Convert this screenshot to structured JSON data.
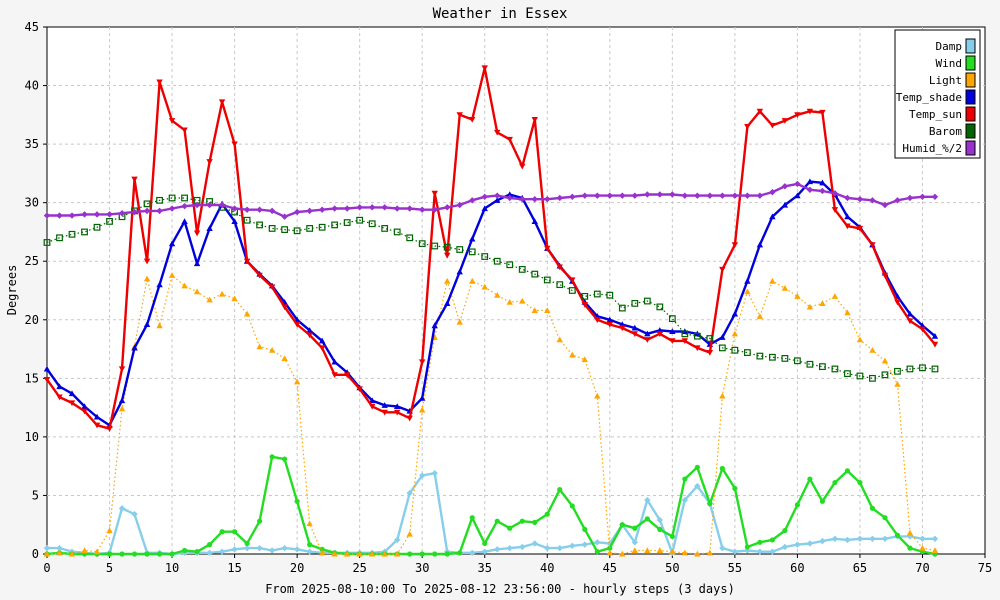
{
  "chart_data": {
    "type": "line",
    "title": "Weather in Essex",
    "xlabel": "From 2025-08-10:00 To 2025-08-12 23:56:00 - hourly steps (3 days)",
    "ylabel": "Degrees",
    "xlim": [
      0,
      75
    ],
    "ylim": [
      0,
      45
    ],
    "xticks": [
      0,
      5,
      10,
      15,
      20,
      25,
      30,
      35,
      40,
      45,
      50,
      55,
      60,
      65,
      70,
      75
    ],
    "yticks": [
      0,
      5,
      10,
      15,
      20,
      25,
      30,
      35,
      40,
      45
    ],
    "grid": true,
    "legend_position": "top-right",
    "series": [
      {
        "name": "Damp",
        "color": "#87ceeb",
        "marker": "diamond",
        "line": "solid",
        "values": [
          0.5,
          0.5,
          0.2,
          0.1,
          0.0,
          0.1,
          3.9,
          3.4,
          0.1,
          0.1,
          0.0,
          0.1,
          0.1,
          0.1,
          0.2,
          0.4,
          0.5,
          0.5,
          0.3,
          0.5,
          0.4,
          0.2,
          0.1,
          0.1,
          0.1,
          0.1,
          0.1,
          0.2,
          1.2,
          5.2,
          6.7,
          6.9,
          0.2,
          0.1,
          0.1,
          0.2,
          0.4,
          0.5,
          0.6,
          0.9,
          0.5,
          0.5,
          0.7,
          0.8,
          1.0,
          0.9,
          2.5,
          1.0,
          4.6,
          2.9,
          0.1,
          4.6,
          5.8,
          4.3,
          0.5,
          0.2,
          0.3,
          0.2,
          0.2,
          0.6,
          0.8,
          0.9,
          1.1,
          1.3,
          1.2,
          1.3,
          1.3,
          1.3,
          1.5,
          1.5,
          1.3,
          1.3
        ]
      },
      {
        "name": "Wind",
        "color": "#22dd22",
        "marker": "circle",
        "line": "solid",
        "values": [
          0.0,
          0.1,
          0.0,
          0.0,
          0.0,
          0.0,
          0.0,
          0.0,
          0.0,
          0.0,
          0.0,
          0.3,
          0.2,
          0.8,
          1.9,
          1.9,
          0.9,
          2.8,
          8.3,
          8.1,
          4.5,
          0.8,
          0.4,
          0.1,
          0.0,
          0.0,
          0.0,
          0.0,
          0.0,
          0.0,
          0.0,
          0.0,
          0.0,
          0.1,
          3.1,
          0.9,
          2.8,
          2.2,
          2.8,
          2.7,
          3.4,
          5.5,
          4.1,
          2.1,
          0.2,
          0.5,
          2.5,
          2.2,
          3.0,
          2.1,
          1.5,
          6.4,
          7.4,
          4.3,
          7.3,
          5.6,
          0.6,
          1.0,
          1.2,
          2.0,
          4.2,
          6.4,
          4.5,
          6.1,
          7.1,
          6.1,
          3.9,
          3.1,
          1.6,
          0.5,
          0.2,
          0.0
        ]
      },
      {
        "name": "Light",
        "color": "#ffa500",
        "marker": "triangle",
        "line": "dotted",
        "values": [
          0.0,
          0.1,
          0.0,
          0.3,
          0.2,
          2.0,
          12.4,
          17.7,
          23.5,
          19.5,
          23.8,
          22.9,
          22.4,
          21.7,
          22.2,
          21.8,
          20.5,
          17.7,
          17.4,
          16.7,
          14.7,
          2.6,
          0.1,
          0.0,
          0.0,
          0.0,
          0.0,
          0.0,
          0.0,
          1.7,
          12.3,
          18.5,
          23.3,
          19.8,
          23.3,
          22.8,
          22.1,
          21.5,
          21.6,
          20.8,
          20.8,
          18.3,
          17.0,
          16.6,
          13.5,
          0.1,
          0.0,
          0.3,
          0.3,
          0.3,
          0.2,
          0.1,
          0.0,
          0.1,
          13.5,
          18.8,
          22.4,
          20.3,
          23.3,
          22.7,
          22.0,
          21.1,
          21.4,
          22.0,
          20.6,
          18.3,
          17.4,
          16.5,
          14.5,
          1.8,
          0.5,
          0.3
        ]
      },
      {
        "name": "Temp_shade",
        "color": "#0000dd",
        "marker": "triangle",
        "line": "solid",
        "values": [
          15.8,
          14.3,
          13.7,
          12.6,
          11.7,
          11.0,
          13.1,
          17.6,
          19.6,
          23.0,
          26.5,
          28.4,
          24.8,
          27.8,
          29.9,
          28.4,
          25.0,
          23.9,
          22.9,
          21.5,
          20.0,
          19.1,
          18.2,
          16.4,
          15.5,
          14.2,
          13.1,
          12.7,
          12.6,
          12.2,
          13.3,
          19.5,
          21.4,
          24.1,
          26.9,
          29.5,
          30.2,
          30.7,
          30.4,
          28.4,
          26.1,
          24.6,
          23.3,
          21.5,
          20.3,
          20.0,
          19.6,
          19.3,
          18.8,
          19.1,
          19.0,
          19.0,
          18.8,
          17.9,
          18.5,
          20.5,
          23.3,
          26.4,
          28.8,
          29.8,
          30.6,
          31.8,
          31.7,
          30.7,
          28.8,
          27.9,
          26.4,
          24.0,
          22.0,
          20.5,
          19.5,
          18.6
        ]
      },
      {
        "name": "Temp_sun",
        "color": "#ee0000",
        "marker": "triangle-down",
        "line": "solid",
        "values": [
          14.9,
          13.4,
          12.9,
          12.2,
          11.0,
          10.7,
          15.8,
          32.0,
          25.0,
          40.3,
          37.0,
          36.2,
          27.4,
          33.5,
          38.6,
          35.0,
          25.0,
          23.8,
          22.8,
          21.1,
          19.6,
          18.7,
          17.6,
          15.3,
          15.3,
          14.1,
          12.6,
          12.1,
          12.1,
          11.6,
          16.4,
          30.8,
          25.5,
          37.5,
          37.1,
          41.5,
          36.0,
          35.4,
          33.1,
          37.1,
          26.1,
          24.5,
          23.4,
          21.3,
          20.0,
          19.6,
          19.3,
          18.8,
          18.3,
          18.8,
          18.2,
          18.2,
          17.6,
          17.2,
          24.3,
          26.4,
          36.5,
          37.8,
          36.6,
          37.0,
          37.5,
          37.8,
          37.7,
          29.4,
          28.0,
          27.8,
          26.4,
          23.8,
          21.5,
          19.9,
          19.2,
          17.9
        ]
      },
      {
        "name": "Barom",
        "color": "#006400",
        "marker": "square-open",
        "line": "dotted",
        "values": [
          26.6,
          27.0,
          27.3,
          27.5,
          27.9,
          28.4,
          28.8,
          29.3,
          29.9,
          30.2,
          30.4,
          30.4,
          30.2,
          30.1,
          29.6,
          29.2,
          28.5,
          28.1,
          27.8,
          27.7,
          27.6,
          27.8,
          27.9,
          28.1,
          28.3,
          28.5,
          28.2,
          27.8,
          27.5,
          27.0,
          26.5,
          26.3,
          26.2,
          26.0,
          25.8,
          25.4,
          25.0,
          24.7,
          24.3,
          23.9,
          23.4,
          23.0,
          22.5,
          22.0,
          22.2,
          22.1,
          21.0,
          21.4,
          21.6,
          21.1,
          20.1,
          18.8,
          18.6,
          18.4,
          17.6,
          17.4,
          17.2,
          16.9,
          16.8,
          16.7,
          16.5,
          16.2,
          16.0,
          15.8,
          15.4,
          15.2,
          15.0,
          15.3,
          15.6,
          15.8,
          15.9,
          15.8
        ]
      },
      {
        "name": "Humid_%/2",
        "color": "#9932cc",
        "marker": "diamond",
        "line": "solid",
        "values": [
          28.9,
          28.9,
          28.9,
          29.0,
          29.0,
          29.0,
          29.1,
          29.2,
          29.3,
          29.3,
          29.5,
          29.7,
          29.8,
          29.8,
          29.8,
          29.5,
          29.4,
          29.4,
          29.3,
          28.8,
          29.2,
          29.3,
          29.4,
          29.5,
          29.5,
          29.6,
          29.6,
          29.6,
          29.5,
          29.5,
          29.4,
          29.4,
          29.6,
          29.8,
          30.2,
          30.5,
          30.6,
          30.4,
          30.3,
          30.3,
          30.3,
          30.4,
          30.5,
          30.6,
          30.6,
          30.6,
          30.6,
          30.6,
          30.7,
          30.7,
          30.7,
          30.6,
          30.6,
          30.6,
          30.6,
          30.6,
          30.6,
          30.6,
          30.9,
          31.4,
          31.6,
          31.1,
          31.0,
          30.8,
          30.4,
          30.3,
          30.2,
          29.8,
          30.2,
          30.4,
          30.5,
          30.5
        ]
      }
    ]
  }
}
